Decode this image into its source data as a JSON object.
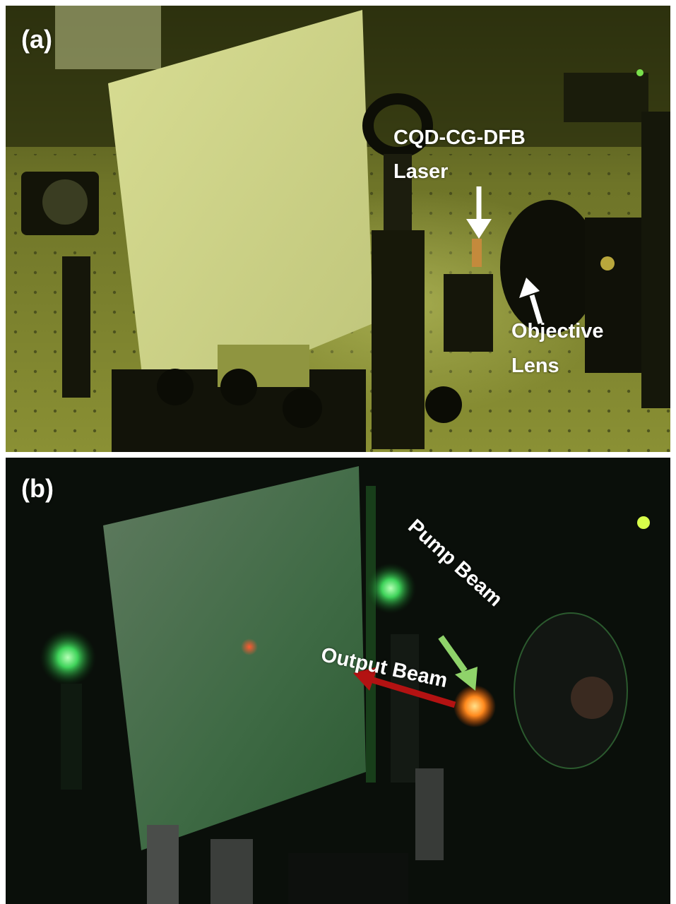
{
  "panel_a": {
    "label": "(a)",
    "annotations": {
      "laser_line1": "CQD-CG-DFB",
      "laser_line2": "Laser",
      "objective_line1": "Objective",
      "objective_line2": "Lens"
    }
  },
  "panel_b": {
    "label": "(b)",
    "annotations": {
      "pump": "Pump Beam",
      "output": "Output Beam"
    }
  },
  "colors": {
    "panel_a_tint": "#7d8530",
    "panel_b_background": "#0a0f0a",
    "pump_arrow": "#8fd36a",
    "output_arrow": "#b31212",
    "label_text": "#ffffff"
  }
}
